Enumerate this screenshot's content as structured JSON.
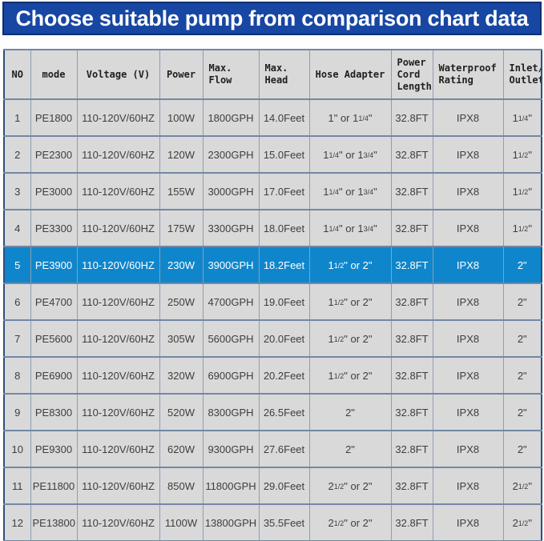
{
  "chart_data": {
    "type": "table",
    "title": "Choose suitable pump from comparison chart data",
    "columns": [
      {
        "key": "no",
        "label": "NO"
      },
      {
        "key": "mode",
        "label": "mode"
      },
      {
        "key": "voltage",
        "label": "Voltage (V)"
      },
      {
        "key": "power",
        "label": "Power"
      },
      {
        "key": "max_flow",
        "label": "Max. Flow"
      },
      {
        "key": "max_head",
        "label": "Max. Head"
      },
      {
        "key": "hose_adapter",
        "label": "Hose Adapter"
      },
      {
        "key": "power_cord_length",
        "label": "Power Cord Length"
      },
      {
        "key": "waterproof_rating",
        "label": "Waterproof Rating"
      },
      {
        "key": "inlet_outlet",
        "label": "Inlet/ Outlet"
      }
    ],
    "rows": [
      [
        "1",
        "PE1800",
        "110-120V/60HZ",
        "100W",
        "1800GPH",
        "14.0Feet",
        "1\" or 1{1/4}\"",
        "32.8FT",
        "IPX8",
        "1{1/4}\""
      ],
      [
        "2",
        "PE2300",
        "110-120V/60HZ",
        "120W",
        "2300GPH",
        "15.0Feet",
        "1{1/4}\" or 1{3/4}\"",
        "32.8FT",
        "IPX8",
        "1{1/2}\""
      ],
      [
        "3",
        "PE3000",
        "110-120V/60HZ",
        "155W",
        "3000GPH",
        "17.0Feet",
        "1{1/4}\" or 1{3/4}\"",
        "32.8FT",
        "IPX8",
        "1{1/2}\""
      ],
      [
        "4",
        "PE3300",
        "110-120V/60HZ",
        "175W",
        "3300GPH",
        "18.0Feet",
        "1{1/4}\" or 1{3/4}\"",
        "32.8FT",
        "IPX8",
        "1{1/2}\""
      ],
      [
        "5",
        "PE3900",
        "110-120V/60HZ",
        "230W",
        "3900GPH",
        "18.2Feet",
        "1{1/2}\" or 2\"",
        "32.8FT",
        "IPX8",
        "2\""
      ],
      [
        "6",
        "PE4700",
        "110-120V/60HZ",
        "250W",
        "4700GPH",
        "19.0Feet",
        "1{1/2}\" or 2\"",
        "32.8FT",
        "IPX8",
        "2\""
      ],
      [
        "7",
        "PE5600",
        "110-120V/60HZ",
        "305W",
        "5600GPH",
        "20.0Feet",
        "1{1/2}\" or 2\"",
        "32.8FT",
        "IPX8",
        "2\""
      ],
      [
        "8",
        "PE6900",
        "110-120V/60HZ",
        "320W",
        "6900GPH",
        "20.2Feet",
        "1{1/2}\" or 2\"",
        "32.8FT",
        "IPX8",
        "2\""
      ],
      [
        "9",
        "PE8300",
        "110-120V/60HZ",
        "520W",
        "8300GPH",
        "26.5Feet",
        "2\"",
        "32.8FT",
        "IPX8",
        "2\""
      ],
      [
        "10",
        "PE9300",
        "110-120V/60HZ",
        "620W",
        "9300GPH",
        "27.6Feet",
        "2\"",
        "32.8FT",
        "IPX8",
        "2\""
      ],
      [
        "11",
        "PE11800",
        "110-120V/60HZ",
        "850W",
        "11800GPH",
        "29.0Feet",
        "2{1/2}\" or 2\"",
        "32.8FT",
        "IPX8",
        "2{1/2}\""
      ],
      [
        "12",
        "PE13800",
        "110-120V/60HZ",
        "1100W",
        "13800GPH",
        "35.5Feet",
        "2{1/2}\" or 2\"",
        "32.8FT",
        "IPX8",
        "2{1/2}\""
      ]
    ],
    "highlighted_row_index": 4,
    "layout_hints": {
      "grid": true,
      "header_position": "top"
    },
    "colors": {
      "title_bar_bg": "#1746a3",
      "title_bar_border": "#0e2f73",
      "title_text": "#ffffff",
      "cell_bg": "#d9d9d9",
      "grid_line": "#7288a5",
      "outer_border": "#2f4e7c",
      "highlight_row_bg": "#0f86cb",
      "highlight_row_text": "#ffffff",
      "body_text": "#3e3e3e"
    }
  }
}
